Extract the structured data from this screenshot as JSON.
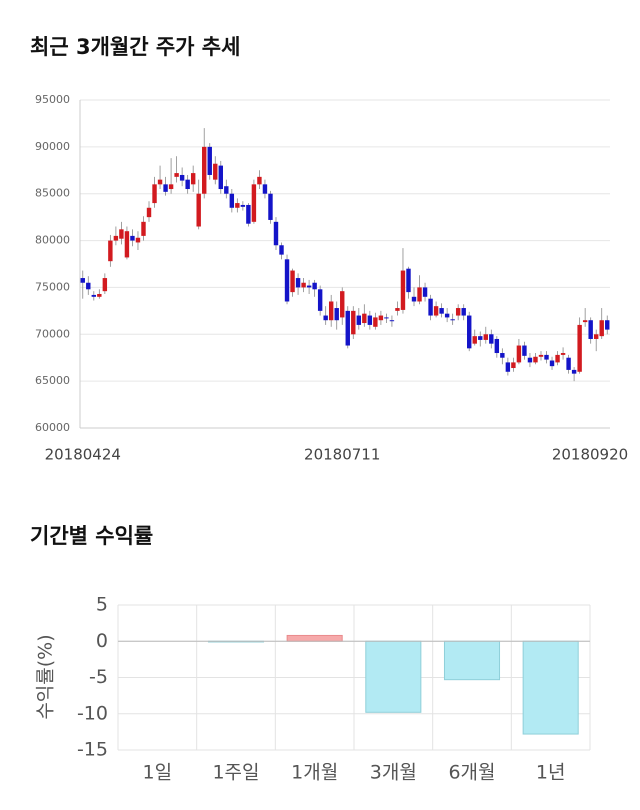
{
  "chart_data": [
    {
      "type": "candlestick",
      "title": "최근 3개월간 주가 추세",
      "categories": [
        "20180424",
        null,
        null,
        null,
        null,
        null,
        null,
        null,
        null,
        null,
        null,
        null,
        null,
        null,
        null,
        null,
        null,
        null,
        null,
        null,
        null,
        null,
        null,
        null,
        null,
        null,
        null,
        null,
        null,
        null,
        null,
        null,
        null,
        null,
        null,
        null,
        null,
        null,
        null,
        null,
        null,
        null,
        null,
        null,
        null,
        null,
        null,
        "20180711",
        null,
        null,
        null,
        null,
        null,
        null,
        null,
        null,
        null,
        null,
        null,
        null,
        null,
        null,
        null,
        null,
        null,
        null,
        null,
        null,
        null,
        null,
        null,
        null,
        null,
        null,
        null,
        null,
        null,
        null,
        null,
        null,
        null,
        null,
        null,
        null,
        null,
        null,
        null,
        null,
        null,
        null,
        null,
        null,
        null,
        null,
        null,
        "20180920"
      ],
      "open": [
        76000,
        75500,
        74200,
        74000,
        74600,
        77800,
        80000,
        80200,
        78200,
        80500,
        79800,
        80500,
        82500,
        84000,
        86000,
        86000,
        85500,
        86800,
        87000,
        86500,
        86000,
        81500,
        85000,
        90000,
        86500,
        88000,
        85800,
        85000,
        83500,
        83800,
        83800,
        82000,
        86000,
        86000,
        85000,
        82000,
        79500,
        78000,
        74500,
        76000,
        75000,
        75200,
        75500,
        74800,
        72000,
        71500,
        72800,
        71800,
        72500,
        70000,
        72000,
        71200,
        72000,
        70800,
        71500,
        71800,
        71500,
        72500,
        72600,
        77000,
        74000,
        73500,
        75000,
        73800,
        72000,
        72800,
        72200,
        71600,
        72000,
        72800,
        72000,
        69000,
        69800,
        69400,
        70000,
        69500,
        68000,
        67000,
        66400,
        67000,
        68800,
        67500,
        67000,
        67600,
        67800,
        67200,
        67000,
        67800,
        67500,
        66200,
        66000,
        71300,
        71500,
        69500,
        69800,
        71500
      ],
      "high": [
        76800,
        76200,
        74600,
        74800,
        76500,
        80600,
        81500,
        82000,
        81500,
        81200,
        81000,
        82600,
        84200,
        86800,
        88000,
        86800,
        88800,
        89000,
        87800,
        87000,
        88000,
        86500,
        92000,
        90400,
        89000,
        88500,
        86500,
        85500,
        84500,
        84200,
        84000,
        86500,
        87500,
        86500,
        85300,
        82500,
        79800,
        78500,
        77000,
        76500,
        76000,
        75800,
        75800,
        75200,
        73000,
        74200,
        73500,
        75000,
        73000,
        73000,
        72800,
        73200,
        72500,
        72300,
        72500,
        72200,
        72000,
        73500,
        79200,
        77200,
        75000,
        76300,
        75500,
        74200,
        73500,
        73300,
        72800,
        72200,
        73200,
        73200,
        72400,
        70500,
        70300,
        70800,
        70500,
        69800,
        68500,
        67500,
        67500,
        69500,
        69200,
        68000,
        68000,
        68200,
        68200,
        67600,
        68200,
        68600,
        67800,
        66500,
        71800,
        72800,
        71800,
        70500,
        72800,
        72000
      ],
      "low": [
        73800,
        74200,
        73600,
        73800,
        74300,
        77200,
        79500,
        79600,
        78000,
        79400,
        79000,
        80000,
        82000,
        83500,
        85500,
        84800,
        85000,
        86200,
        85800,
        85000,
        85200,
        81200,
        84500,
        86500,
        86000,
        85000,
        84500,
        83000,
        83000,
        83200,
        81500,
        81800,
        85500,
        84500,
        81800,
        79000,
        78000,
        73200,
        74000,
        74200,
        74500,
        74300,
        74000,
        72000,
        71000,
        70800,
        70500,
        71000,
        68500,
        69500,
        70500,
        70800,
        70500,
        70500,
        71000,
        71200,
        70800,
        72000,
        72200,
        73800,
        73000,
        73200,
        73500,
        71500,
        71800,
        71800,
        71300,
        71000,
        71500,
        71500,
        68200,
        68800,
        68700,
        69000,
        68500,
        67500,
        66800,
        65600,
        66000,
        66800,
        67300,
        66500,
        66800,
        67200,
        66900,
        66200,
        66700,
        67300,
        65800,
        65000,
        65800,
        70800,
        69000,
        68200,
        69500,
        70000
      ],
      "close": [
        75500,
        74800,
        74000,
        74300,
        76000,
        80000,
        80500,
        81200,
        81000,
        80000,
        80300,
        82000,
        83500,
        86000,
        86500,
        85200,
        86000,
        87200,
        86400,
        85500,
        87200,
        85000,
        90000,
        87000,
        88200,
        85500,
        85000,
        83500,
        84000,
        83600,
        81800,
        86000,
        86800,
        85000,
        82200,
        79500,
        78500,
        73500,
        76800,
        75000,
        75500,
        75000,
        74800,
        72500,
        71500,
        73500,
        71500,
        74600,
        68800,
        72500,
        71000,
        72200,
        71000,
        71800,
        72000,
        71700,
        71400,
        72800,
        76800,
        74500,
        73500,
        75000,
        74000,
        72000,
        73000,
        72200,
        71800,
        71500,
        72800,
        72000,
        68500,
        69800,
        69400,
        70000,
        69000,
        68000,
        67500,
        66000,
        67000,
        68800,
        67700,
        67000,
        67600,
        67800,
        67300,
        66600,
        67800,
        68000,
        66200,
        65800,
        71000,
        71500,
        69500,
        70000,
        71500,
        70500
      ],
      "up_color": "#d21a1f",
      "down_color": "#1414c8",
      "ylim": [
        60000,
        95000
      ],
      "yticks": [
        60000,
        65000,
        70000,
        75000,
        80000,
        85000,
        90000,
        95000
      ],
      "grid": true
    },
    {
      "type": "bar",
      "title": "기간별 수익률",
      "ylabel": "수익률(%)",
      "categories": [
        "1일",
        "1주일",
        "1개월",
        "3개월",
        "6개월",
        "1년"
      ],
      "values": [
        0,
        -0.1,
        0.8,
        -9.8,
        -5.3,
        -12.8
      ],
      "up_color": "#f6a9aa",
      "down_color": "#b2eaf3",
      "ylim": [
        -15,
        5
      ],
      "yticks": [
        5,
        0,
        -5,
        -10,
        -15
      ],
      "grid": true
    }
  ]
}
